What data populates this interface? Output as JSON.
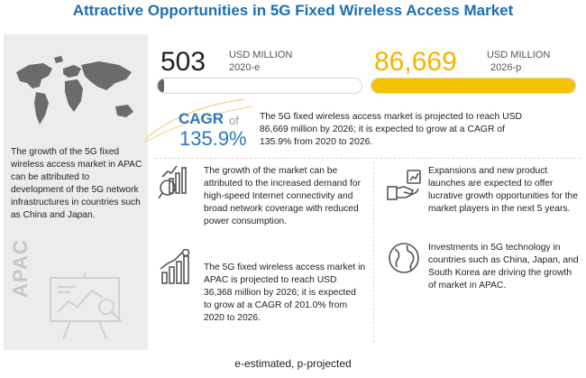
{
  "title": "Attractive Opportunities in 5G Fixed Wireless Access Market",
  "left_panel": {
    "text": "The growth of the 5G fixed wireless access market in APAC can be attributed to development of the 5G network infrastructures in countries such as China and Japan.",
    "region_label": "APAC"
  },
  "stats": {
    "left": {
      "value": "503",
      "unit": "USD MILLION",
      "year": "2020-e",
      "fill_fraction": 0.006
    },
    "right": {
      "value": "86,669",
      "unit": "USD MILLION",
      "year": "2026-p",
      "fill_fraction": 1.0
    }
  },
  "cagr": {
    "label": "CAGR",
    "of": "of",
    "value": "135.9%",
    "text": "The 5G fixed wireless access market is projected to reach USD 86,669 million by 2026; it is expected to grow at a CAGR of 135.9% from 2020 to 2026."
  },
  "blocks": [
    {
      "icon": "growth-chart-icon",
      "text": "The growth of the market can be attributed to the increased demand for high-speed Internet connectivity and broad network coverage with reduced power consumption."
    },
    {
      "icon": "handshake-icon",
      "text": "Expansions and new product launches are expected to offer lucrative growth opportunities for the market players in the next 5 years."
    },
    {
      "icon": "money-bar-chart-icon",
      "text": "The 5G fixed wireless access market in APAC is projected to reach USD 36,368 million by 2026; it is expected to grow at a CAGR of 201.0% from 2020 to 2026."
    },
    {
      "icon": "globe-icon",
      "text": "Investments in 5G technology in countries such as China, Japan, and South Korea are driving the growth of market in APAC."
    }
  ],
  "footer": "e-estimated, p-projected",
  "colors": {
    "title": "#1a6fb5",
    "accent_yellow": "#f5c200",
    "cagr_blue": "#2a76c4",
    "panel_gray": "#ececec"
  }
}
